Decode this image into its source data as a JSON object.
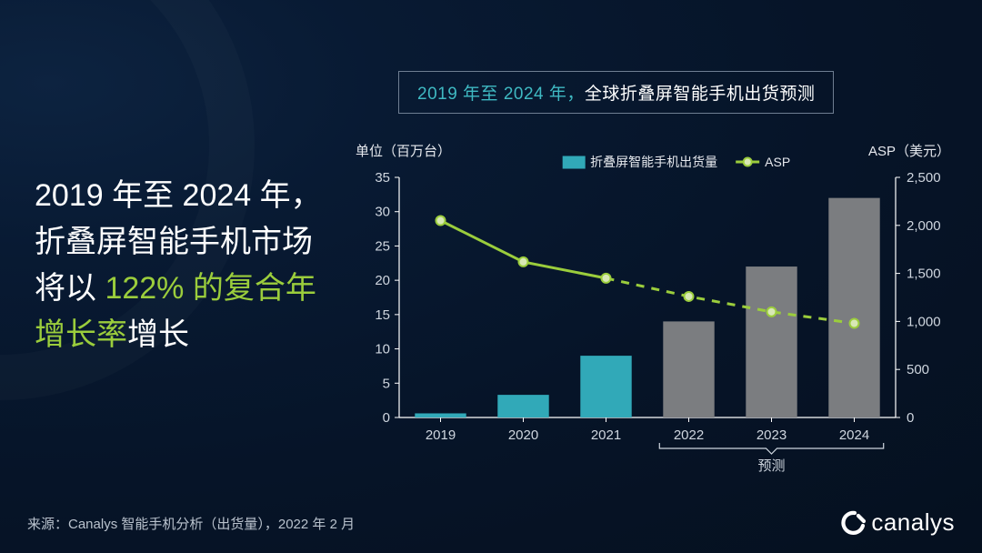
{
  "headline": {
    "part1": "2019 年至 2024 年，折叠屏智能手机市场将以 ",
    "accent": "122% 的复合年增长率",
    "part2": "增长"
  },
  "titlebox": {
    "teal": "2019 年至 2024 年，",
    "white1": "全球折叠屏",
    "white2": "智能手机出货预测"
  },
  "chart": {
    "type": "bar+line",
    "left_axis_title": "单位（百万台）",
    "right_axis_title": "ASP（美元）",
    "categories": [
      "2019",
      "2020",
      "2021",
      "2022",
      "2023",
      "2024"
    ],
    "bars": {
      "label": "折叠屏智能手机出货量",
      "values": [
        0.6,
        3.3,
        9.0,
        14.0,
        22.0,
        32.0
      ],
      "colors": [
        "#31a9b8",
        "#31a9b8",
        "#31a9b8",
        "#7b7d80",
        "#7b7d80",
        "#7b7d80"
      ],
      "bar_width_ratio": 0.62
    },
    "line": {
      "label": "ASP",
      "values": [
        2050,
        1620,
        1450,
        1260,
        1100,
        980
      ],
      "color": "#9bcd3c",
      "marker_fill": "#d8e8b5",
      "marker_stroke": "#9bcd3c",
      "marker_r": 5,
      "dash_from_index": 2,
      "solid_width": 3,
      "dash_pattern": "9 8"
    },
    "left_axis": {
      "min": 0,
      "max": 35,
      "step": 5
    },
    "right_axis": {
      "min": 0,
      "max": 2500,
      "step": 500,
      "labels": [
        "0",
        "500",
        "1,000",
        "1,500",
        "2,000",
        "2,500"
      ]
    },
    "forecast_label": "预测",
    "forecast_start_index": 3,
    "grid_color": "#ffffff",
    "axis_text_color": "#cfd6df",
    "axis_label_color": "#e6e9ee",
    "legend_text_color": "#e6e9ee",
    "fontsize_axis": 15,
    "fontsize_legend": 14
  },
  "source": "来源：Canalys 智能手机分析（出货量），2022 年 2 月",
  "logo_text": "canalys"
}
